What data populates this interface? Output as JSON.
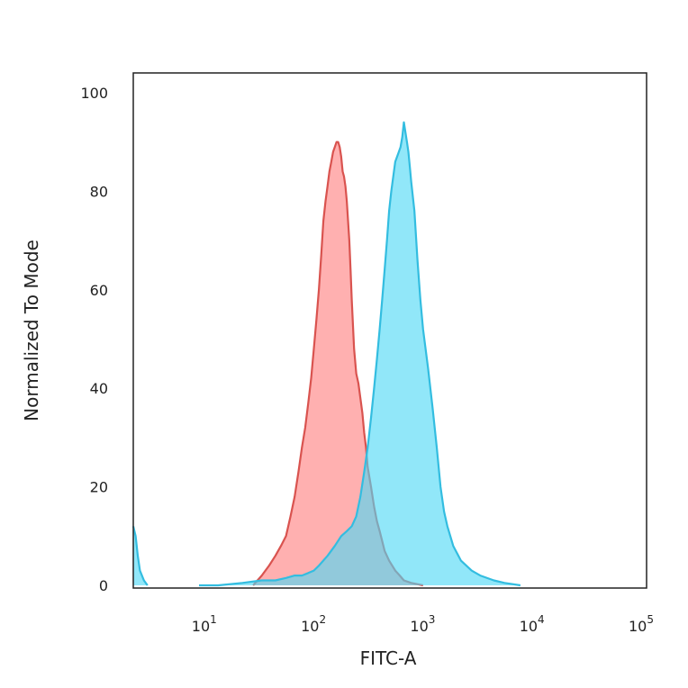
{
  "chart_data": {
    "type": "area",
    "title": "",
    "xlabel": "FITC-A",
    "ylabel": "Normalized To Mode",
    "x_scale": "log",
    "xlim": [
      2,
      100000
    ],
    "ylim": [
      0,
      100
    ],
    "grid": false,
    "legend": "none",
    "x_ticks": [
      {
        "value": 10,
        "base": "10",
        "exp": "1"
      },
      {
        "value": 100,
        "base": "10",
        "exp": "2"
      },
      {
        "value": 1000,
        "base": "10",
        "exp": "3"
      },
      {
        "value": 10000,
        "base": "10",
        "exp": "4"
      },
      {
        "value": 100000,
        "base": "10",
        "exp": "5"
      }
    ],
    "y_ticks": [
      "0",
      "20",
      "40",
      "60",
      "80",
      "100"
    ],
    "series": [
      {
        "stroke": "#d9534f",
        "fill": "#ff7f7f",
        "x": [
          25,
          30,
          35,
          40,
          45,
          50,
          55,
          60,
          65,
          70,
          75,
          80,
          85,
          90,
          95,
          100,
          105,
          110,
          115,
          120,
          125,
          130,
          135,
          140,
          145,
          150,
          155,
          160,
          165,
          170,
          175,
          180,
          185,
          190,
          195,
          200,
          210,
          220,
          230,
          240,
          250,
          260,
          270,
          280,
          300,
          320,
          340,
          360,
          380,
          400,
          440,
          500,
          550,
          600,
          700,
          900
        ],
        "y": [
          0,
          2,
          4,
          6,
          8,
          10,
          14,
          18,
          23,
          28,
          32,
          37,
          42,
          48,
          54,
          60,
          67,
          74,
          78,
          81,
          84,
          86,
          88,
          89,
          90,
          90,
          89,
          87,
          84,
          83,
          81,
          78,
          74,
          70,
          64,
          58,
          48,
          43,
          41,
          38,
          35,
          31,
          28,
          24,
          20,
          16,
          13,
          11,
          9,
          7,
          5,
          3,
          2,
          1,
          0.5,
          0
        ]
      },
      {
        "stroke": "#33bde0",
        "fill": "#4dd9f5",
        "x": [
          8,
          12,
          20,
          30,
          40,
          50,
          60,
          70,
          80,
          90,
          100,
          120,
          140,
          160,
          180,
          200,
          220,
          240,
          260,
          280,
          300,
          320,
          340,
          360,
          380,
          400,
          420,
          440,
          460,
          480,
          500,
          520,
          540,
          560,
          580,
          600,
          620,
          640,
          660,
          680,
          700,
          750,
          800,
          850,
          900,
          1000,
          1100,
          1200,
          1300,
          1400,
          1500,
          1700,
          2000,
          2500,
          3000,
          4000,
          5000,
          7000
        ],
        "y": [
          0,
          0,
          0.5,
          1,
          1,
          1.5,
          2,
          2,
          2.5,
          3,
          4,
          6,
          8,
          10,
          11,
          12,
          14,
          18,
          23,
          28,
          34,
          40,
          46,
          52,
          58,
          64,
          70,
          76,
          80,
          83,
          86,
          87,
          88,
          89,
          91,
          94,
          92,
          90,
          88,
          85,
          82,
          76,
          66,
          58,
          52,
          44,
          36,
          28,
          20,
          15,
          12,
          8,
          5,
          3,
          2,
          1,
          0.5,
          0
        ]
      },
      {
        "stroke": "#33bde0",
        "fill": "#4dd9f5",
        "x": [
          2,
          2.1,
          2.2,
          2.3,
          2.5,
          2.7
        ],
        "y": [
          12,
          10,
          6,
          3,
          1,
          0
        ]
      }
    ]
  }
}
